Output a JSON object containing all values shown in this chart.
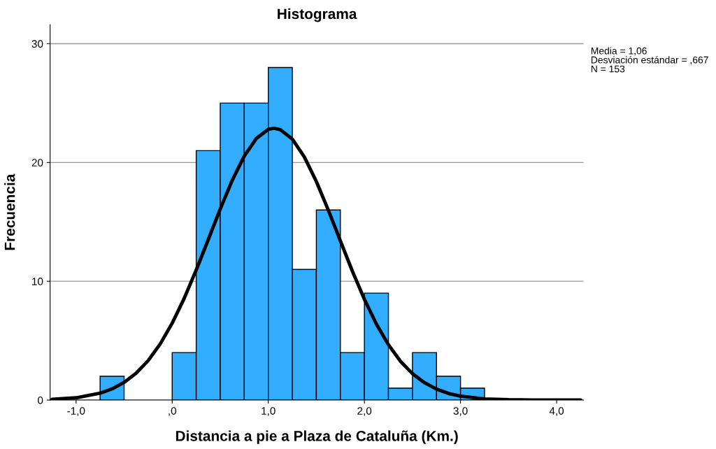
{
  "chart_data": {
    "type": "histogram",
    "title": "Histograma",
    "xlabel": "Distancia a pie a Plaza de Cataluña (Km.)",
    "ylabel": "Frecuencia",
    "bins": [
      -0.75,
      -0.5,
      -0.25,
      0,
      0.25,
      0.5,
      0.75,
      1.0,
      1.25,
      1.5,
      1.75,
      2.0,
      2.25,
      2.5,
      2.75,
      3.0,
      3.25
    ],
    "values": [
      2,
      0,
      0,
      4,
      21,
      25,
      25,
      28,
      11,
      16,
      4,
      9,
      1,
      4,
      2,
      1
    ],
    "color": "#33adff",
    "series": [
      {
        "type": "line",
        "color": "#000000",
        "x": [
          -1.25,
          -1.0,
          -0.75,
          -0.625,
          -0.5,
          -0.375,
          -0.25,
          -0.125,
          0,
          0.125,
          0.25,
          0.375,
          0.5,
          0.625,
          0.75,
          0.875,
          1.0,
          1.06,
          1.125,
          1.25,
          1.375,
          1.5,
          1.625,
          1.75,
          1.875,
          2.0,
          2.125,
          2.25,
          2.375,
          2.5,
          2.625,
          2.75,
          2.875,
          3.0,
          3.25,
          3.5,
          3.75,
          4.0,
          4.25
        ],
        "values": [
          0.06,
          0.19,
          0.58,
          0.94,
          1.49,
          2.26,
          3.32,
          4.72,
          6.47,
          8.56,
          10.95,
          13.5,
          16.08,
          18.5,
          20.54,
          22.02,
          22.79,
          22.88,
          22.77,
          21.97,
          20.47,
          18.4,
          15.98,
          13.4,
          10.85,
          8.48,
          6.39,
          4.66,
          3.27,
          2.22,
          1.46,
          0.92,
          0.56,
          0.33,
          0.1,
          0.03,
          0.01,
          0,
          0
        ]
      }
    ],
    "xlim": [
      -1.27,
      4.28
    ],
    "ylim": [
      0,
      31.6
    ],
    "xticks": [
      {
        "value": -1,
        "label": "-1,0"
      },
      {
        "value": 0,
        "label": ",0"
      },
      {
        "value": 1,
        "label": "1,0"
      },
      {
        "value": 2,
        "label": "2,0"
      },
      {
        "value": 3,
        "label": "3,0"
      },
      {
        "value": 4,
        "label": "4,0"
      }
    ],
    "yticks": [
      0,
      10,
      20,
      30
    ],
    "grid": "y",
    "annotations": [
      "Media = 1,06\nDesviación estándar = ,667\nN = 153"
    ]
  }
}
